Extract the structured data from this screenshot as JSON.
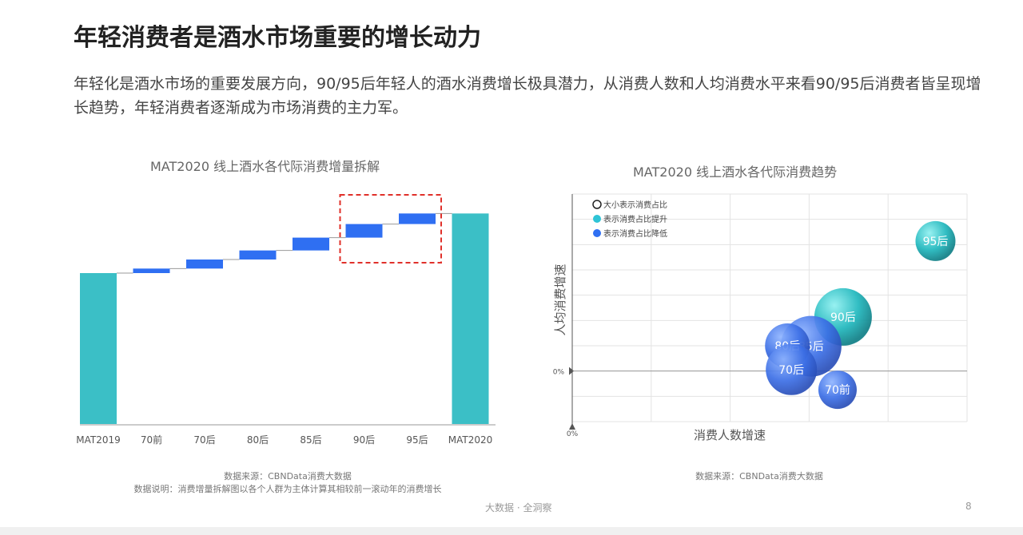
{
  "title": "年轻消费者是酒水市场重要的增长动力",
  "subtitle": "年轻化是酒水市场的重要发展方向，90/95后年轻人的酒水消费增长极具潜力，从消费人数和人均消费水平来看90/95后消费者皆呈现增长趋势，年轻消费者逐渐成为市场消费的主力军。",
  "left_note1": "数据来源：CBNData消费大数据",
  "left_note2": "数据说明：消费增量拆解图以各个人群为主体计算其相较前一滚动年的消费增长",
  "right_note": "数据来源：CBNData消费大数据",
  "footer": "大数据 · 全洞察",
  "page_number": "8",
  "chart_data": [
    {
      "type": "bar",
      "subtype": "waterfall",
      "title": "MAT2020 线上酒水各代际消费增量拆解",
      "categories": [
        "MAT2019",
        "70前",
        "70后",
        "80后",
        "85后",
        "90后",
        "95后",
        "MAT2020"
      ],
      "values": [
        100,
        3,
        6,
        6,
        8.5,
        9,
        7,
        139.5
      ],
      "kinds": [
        "total",
        "delta",
        "delta",
        "delta",
        "delta",
        "delta",
        "delta",
        "total"
      ],
      "highlight": [
        "90后",
        "95后"
      ],
      "colors": {
        "total": "#3bbfc6",
        "delta": "#2f6ff2",
        "highlight": "#e0302a"
      },
      "ylim": [
        0,
        150
      ]
    },
    {
      "type": "scatter",
      "subtype": "bubble",
      "title": "MAT2020 线上酒水各代际消费趋势",
      "xlabel": "消费人数增速",
      "ylabel": "人均消费增速",
      "zero_label": "0%",
      "origin_label": "0%",
      "xlim": [
        0,
        100
      ],
      "ylim": [
        -10,
        35
      ],
      "legend": [
        {
          "label": "大小表示消费占比",
          "color": "#ffffff"
        },
        {
          "label": "表示消费占比提升",
          "color": "#2ec4d6"
        },
        {
          "label": "表示消费占比降低",
          "color": "#2f6ff2"
        }
      ],
      "points": [
        {
          "label": "95后",
          "x": 92,
          "y": 25.7,
          "size": 25,
          "trend": "up"
        },
        {
          "label": "90后",
          "x": 68.6,
          "y": 10.7,
          "size": 36,
          "trend": "up"
        },
        {
          "label": "85后",
          "x": 60.5,
          "y": 4.9,
          "size": 38,
          "trend": "down"
        },
        {
          "label": "80后",
          "x": 54.5,
          "y": 5,
          "size": 28,
          "trend": "down"
        },
        {
          "label": "70后",
          "x": 55.5,
          "y": 0.3,
          "size": 32,
          "trend": "down"
        },
        {
          "label": "70前",
          "x": 67.2,
          "y": -3.7,
          "size": 24,
          "trend": "down"
        }
      ]
    }
  ]
}
